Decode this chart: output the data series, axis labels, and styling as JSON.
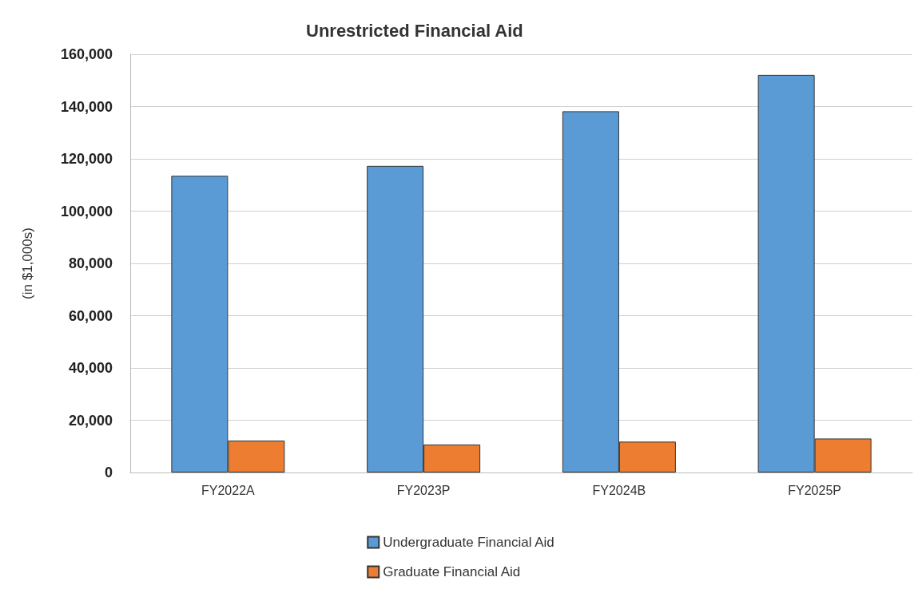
{
  "chart_data": {
    "type": "bar",
    "title": "Unrestricted Financial Aid",
    "ylabel": "(in $1,000s)",
    "categories": [
      "FY2022A",
      "FY2023P",
      "FY2024B",
      "FY2025P"
    ],
    "series": [
      {
        "name": "Undergraduate Financial Aid",
        "color": "#5b9bd5",
        "values": [
          113500,
          117300,
          138200,
          152100
        ]
      },
      {
        "name": "Graduate Financial Aid",
        "color": "#ed7d31",
        "values": [
          12200,
          10700,
          11800,
          13000
        ]
      }
    ],
    "ylim": [
      0,
      160000
    ],
    "yticks": [
      0,
      {
        "value": 20000,
        "label": "20,000"
      },
      {
        "value": 40000,
        "label": "40,000"
      },
      {
        "value": 60000,
        "label": "60,000"
      },
      {
        "value": 80000,
        "label": "80,000"
      },
      {
        "value": 100000,
        "label": "100,000"
      },
      {
        "value": 120000,
        "label": "120,000"
      },
      {
        "value": 140000,
        "label": "140,000"
      },
      {
        "value": 160000,
        "label": "160,000"
      }
    ],
    "grid": "y",
    "legend": "bottom"
  }
}
